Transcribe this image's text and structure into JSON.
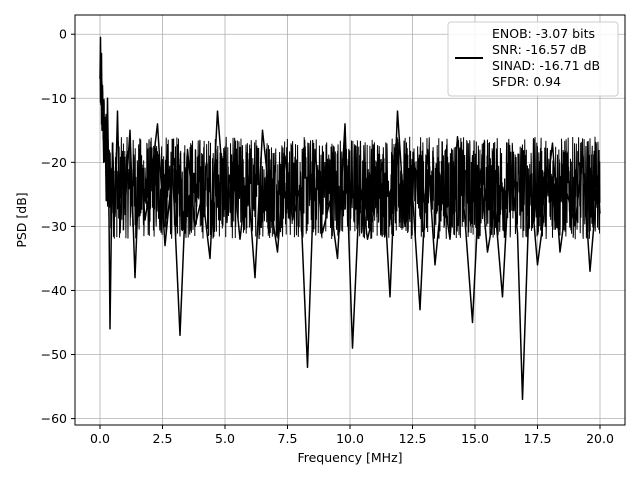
{
  "chart_data": {
    "type": "line",
    "xlabel": "Frequency [MHz]",
    "ylabel": "PSD [dB]",
    "xlim": [
      -1,
      21
    ],
    "ylim": [
      -61,
      3
    ],
    "x_ticks": [
      0.0,
      2.5,
      5.0,
      7.5,
      10.0,
      12.5,
      15.0,
      17.5,
      20.0
    ],
    "x_tick_labels": [
      "0.0",
      "2.5",
      "5.0",
      "7.5",
      "10.0",
      "12.5",
      "15.0",
      "17.5",
      "20.0"
    ],
    "y_ticks": [
      0,
      -10,
      -20,
      -30,
      -40,
      -50,
      -60
    ],
    "y_tick_labels": [
      "0",
      "−10",
      "−20",
      "−30",
      "−40",
      "−50",
      "−60"
    ],
    "grid": true,
    "legend_position": "top-right",
    "series": [
      {
        "name": "ENOB: -3.07 bits\nSNR: -16.57 dB\nSINAD: -16.71 dB\nSFDR: 0.94",
        "color": "#000000",
        "x": [
          0.0,
          0.02,
          0.04,
          0.06,
          0.08,
          0.1,
          0.15,
          0.2,
          0.25,
          0.3,
          0.35,
          0.4,
          0.5,
          0.6,
          0.7,
          0.8,
          0.9,
          1.0,
          1.2,
          1.4,
          1.6,
          1.8,
          2.0,
          2.3,
          2.6,
          2.9,
          3.2,
          3.5,
          3.8,
          4.1,
          4.4,
          4.7,
          5.0,
          5.3,
          5.6,
          5.9,
          6.2,
          6.5,
          6.8,
          7.1,
          7.4,
          7.7,
          8.0,
          8.3,
          8.6,
          8.9,
          9.2,
          9.5,
          9.8,
          10.1,
          10.4,
          10.7,
          11.0,
          11.3,
          11.6,
          11.9,
          12.2,
          12.5,
          12.8,
          13.1,
          13.4,
          13.7,
          14.0,
          14.3,
          14.6,
          14.9,
          15.2,
          15.5,
          15.8,
          16.1,
          16.4,
          16.7,
          16.9,
          17.2,
          17.5,
          17.8,
          18.1,
          18.4,
          18.7,
          19.0,
          19.3,
          19.6,
          19.9,
          20.0
        ],
        "values": [
          -7,
          -0.5,
          -11,
          -3,
          -15,
          -8,
          -20,
          -13,
          -26,
          -10,
          -24,
          -46,
          -17,
          -28,
          -12,
          -31,
          -20,
          -27,
          -15,
          -38,
          -18,
          -29,
          -24,
          -14,
          -33,
          -21,
          -47,
          -18,
          -30,
          -25,
          -35,
          -12,
          -27,
          -20,
          -32,
          -22,
          -38,
          -15,
          -26,
          -34,
          -19,
          -29,
          -24,
          -52,
          -18,
          -31,
          -26,
          -35,
          -14,
          -49,
          -23,
          -32,
          -27,
          -20,
          -41,
          -12,
          -30,
          -25,
          -43,
          -18,
          -36,
          -24,
          -32,
          -16,
          -29,
          -45,
          -21,
          -34,
          -27,
          -41,
          -19,
          -31,
          -57,
          -22,
          -36,
          -27,
          -17,
          -34,
          -25,
          -30,
          -19,
          -37,
          -23,
          -28
        ]
      }
    ]
  }
}
